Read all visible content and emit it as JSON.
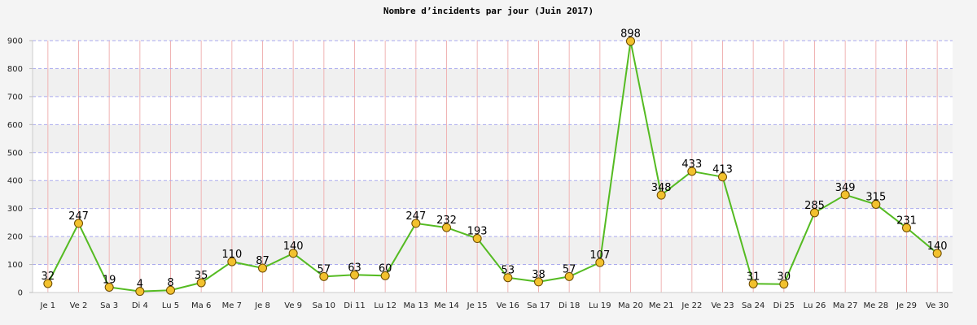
{
  "chart_data": {
    "type": "line",
    "title": "Nombre d’incidents par jour (Juin 2017)",
    "xlabel": "",
    "ylabel": "",
    "ylim": [
      0,
      900
    ],
    "yticks": [
      0,
      100,
      200,
      300,
      400,
      500,
      600,
      700,
      800,
      900
    ],
    "grid": true,
    "categories": [
      "Je 1",
      "Ve 2",
      "Sa 3",
      "Di 4",
      "Lu 5",
      "Ma 6",
      "Me 7",
      "Je 8",
      "Ve 9",
      "Sa 10",
      "Di 11",
      "Lu 12",
      "Ma 13",
      "Me 14",
      "Je 15",
      "Ve 16",
      "Sa 17",
      "Di 18",
      "Lu 19",
      "Ma 20",
      "Me 21",
      "Je 22",
      "Ve 23",
      "Sa 24",
      "Di 25",
      "Lu 26",
      "Ma 27",
      "Me 28",
      "Je 29",
      "Ve 30"
    ],
    "series": [
      {
        "values": [
          32,
          247,
          19,
          4,
          8,
          35,
          110,
          87,
          140,
          57,
          63,
          60,
          247,
          232,
          193,
          53,
          38,
          57,
          107,
          898,
          348,
          433,
          413,
          31,
          30,
          285,
          349,
          315,
          231,
          140
        ]
      }
    ],
    "colors": {
      "line": "#55bb22",
      "marker_fill": "#f2c12e",
      "marker_stroke": "#6b4a00",
      "vertical_grid": "#f0b4b4",
      "horizontal_grid": "#aaaaee",
      "band": "#f0f0f0",
      "plot_bg": "#ffffff",
      "page_bg": "#f4f4f4"
    }
  }
}
